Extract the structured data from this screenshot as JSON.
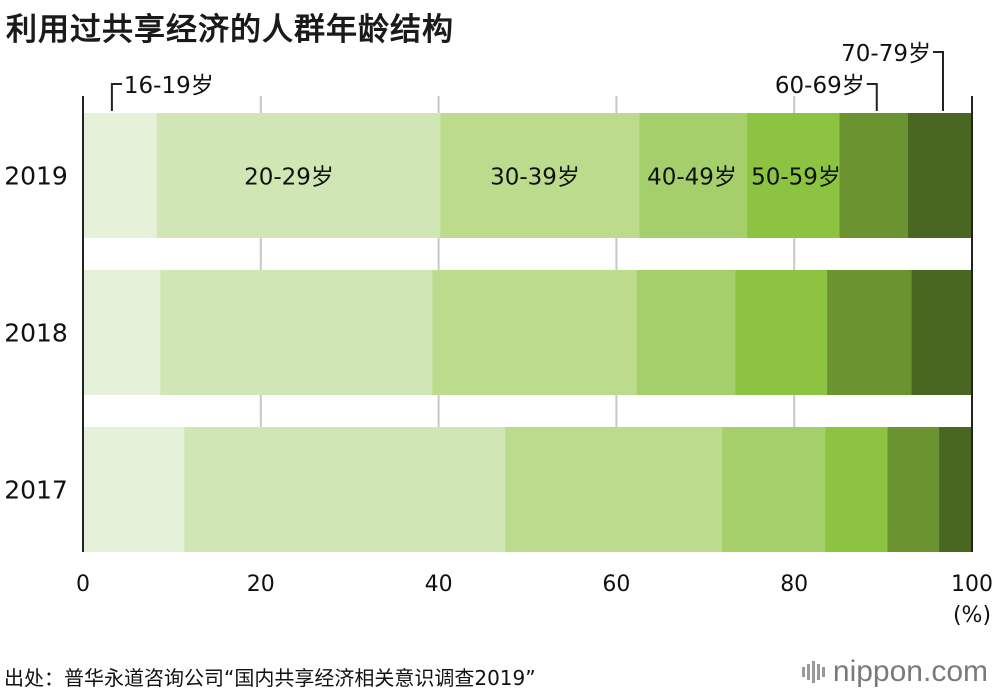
{
  "title": "利用过共享经济的人群年龄结构",
  "source": "出处：普华永道咨询公司“国内共享经济相关意识调查2019”",
  "brand": "nippon.com",
  "chart_data": {
    "type": "bar",
    "orientation": "horizontal",
    "stacked": true,
    "categories": [
      "2019",
      "2018",
      "2017"
    ],
    "series": [
      {
        "name": "16-19岁",
        "values": [
          8.3,
          8.7,
          11.4
        ]
      },
      {
        "name": "20-29岁",
        "values": [
          31.9,
          30.6,
          36.1
        ]
      },
      {
        "name": "30-39岁",
        "values": [
          22.4,
          23.0,
          24.4
        ]
      },
      {
        "name": "40-49岁",
        "values": [
          12.1,
          11.1,
          11.6
        ]
      },
      {
        "name": "50-59岁",
        "values": [
          10.4,
          10.3,
          7.0
        ]
      },
      {
        "name": "60-69岁",
        "values": [
          7.7,
          9.5,
          5.8
        ]
      },
      {
        "name": "70-79岁",
        "values": [
          7.2,
          6.8,
          3.7
        ]
      }
    ],
    "colors": [
      "#e6f1da",
      "#d1e6b5",
      "#bcdb8c",
      "#a4cf6a",
      "#8cc341",
      "#6b9330",
      "#4a6722"
    ],
    "xlim": [
      0,
      100
    ],
    "xticks": [
      "0",
      "20",
      "40",
      "60",
      "80",
      "100"
    ],
    "xunit": "(%)",
    "grid": true
  }
}
